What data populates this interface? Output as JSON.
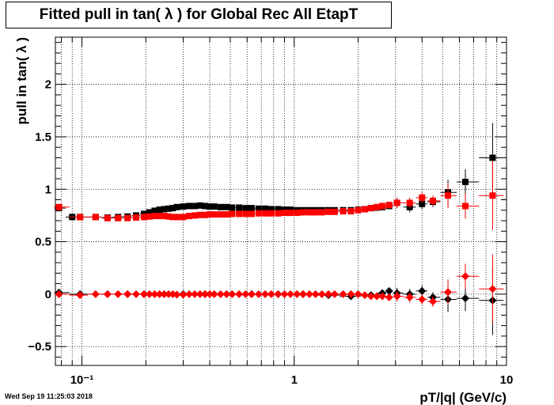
{
  "title": "Fitted pull in tan( λ ) for Global Rec All EtapT",
  "timestamp": "Wed Sep 19 11:25:03 2018",
  "colors": {
    "series_black": "#000000",
    "series_red": "#ff0000",
    "grid": "#000000"
  },
  "chart_data": {
    "type": "scatter",
    "title": "Fitted pull in tan( λ ) for Global Rec All EtapT",
    "xlabel": "pT/|q| (GeV/c)",
    "ylabel": "pull in tan( λ )",
    "xscale": "log",
    "xlim": [
      0.075,
      10
    ],
    "ylim": [
      -0.68,
      2.45
    ],
    "grid": true,
    "xticks": [
      {
        "value": 0.1,
        "label": "10⁻¹"
      },
      {
        "value": 1,
        "label": "1"
      },
      {
        "value": 10,
        "label": "10"
      }
    ],
    "yticks": [
      -0.5,
      0,
      0.5,
      1,
      1.5,
      2
    ],
    "ytick_labels": [
      "−0.5",
      "0",
      "0.5",
      "1",
      "1.5",
      "2"
    ],
    "series": [
      {
        "marker": "square",
        "color": "#000000",
        "points": [
          [
            0.078,
            0.82
          ],
          [
            0.09,
            0.735
          ],
          [
            0.098,
            0.735
          ],
          [
            0.116,
            0.735
          ],
          [
            0.132,
            0.73
          ],
          [
            0.148,
            0.735
          ],
          [
            0.164,
            0.74
          ],
          [
            0.18,
            0.75
          ],
          [
            0.196,
            0.765
          ],
          [
            0.208,
            0.78
          ],
          [
            0.22,
            0.795
          ],
          [
            0.232,
            0.805
          ],
          [
            0.244,
            0.81
          ],
          [
            0.256,
            0.815
          ],
          [
            0.268,
            0.82
          ],
          [
            0.28,
            0.83
          ],
          [
            0.3,
            0.835
          ],
          [
            0.32,
            0.84
          ],
          [
            0.34,
            0.84
          ],
          [
            0.36,
            0.845
          ],
          [
            0.38,
            0.84
          ],
          [
            0.4,
            0.835
          ],
          [
            0.42,
            0.835
          ],
          [
            0.45,
            0.83
          ],
          [
            0.48,
            0.83
          ],
          [
            0.51,
            0.825
          ],
          [
            0.55,
            0.825
          ],
          [
            0.59,
            0.82
          ],
          [
            0.63,
            0.82
          ],
          [
            0.68,
            0.815
          ],
          [
            0.73,
            0.815
          ],
          [
            0.78,
            0.81
          ],
          [
            0.84,
            0.81
          ],
          [
            0.9,
            0.805
          ],
          [
            0.96,
            0.805
          ],
          [
            1.03,
            0.8
          ],
          [
            1.1,
            0.8
          ],
          [
            1.18,
            0.8
          ],
          [
            1.26,
            0.8
          ],
          [
            1.35,
            0.8
          ],
          [
            1.45,
            0.8
          ],
          [
            1.55,
            0.8
          ],
          [
            1.7,
            0.8
          ],
          [
            1.85,
            0.8
          ],
          [
            2.0,
            0.805
          ],
          [
            2.15,
            0.81
          ],
          [
            2.3,
            0.82
          ],
          [
            2.45,
            0.825
          ],
          [
            2.6,
            0.83
          ],
          [
            2.8,
            0.84
          ],
          [
            3.05,
            0.87
          ],
          [
            3.5,
            0.83
          ],
          [
            4.0,
            0.86
          ],
          [
            4.5,
            0.88
          ],
          [
            5.3,
            0.97
          ],
          [
            6.4,
            1.07
          ],
          [
            8.6,
            1.3
          ]
        ]
      },
      {
        "marker": "square",
        "color": "#ff0000",
        "points": [
          [
            0.078,
            0.83
          ],
          [
            0.098,
            0.735
          ],
          [
            0.116,
            0.735
          ],
          [
            0.132,
            0.725
          ],
          [
            0.148,
            0.725
          ],
          [
            0.164,
            0.725
          ],
          [
            0.18,
            0.73
          ],
          [
            0.196,
            0.735
          ],
          [
            0.208,
            0.74
          ],
          [
            0.22,
            0.745
          ],
          [
            0.232,
            0.745
          ],
          [
            0.244,
            0.745
          ],
          [
            0.256,
            0.74
          ],
          [
            0.268,
            0.735
          ],
          [
            0.28,
            0.735
          ],
          [
            0.3,
            0.735
          ],
          [
            0.32,
            0.745
          ],
          [
            0.34,
            0.75
          ],
          [
            0.36,
            0.755
          ],
          [
            0.38,
            0.755
          ],
          [
            0.4,
            0.76
          ],
          [
            0.42,
            0.76
          ],
          [
            0.45,
            0.76
          ],
          [
            0.48,
            0.76
          ],
          [
            0.51,
            0.765
          ],
          [
            0.55,
            0.765
          ],
          [
            0.59,
            0.765
          ],
          [
            0.63,
            0.765
          ],
          [
            0.68,
            0.77
          ],
          [
            0.73,
            0.77
          ],
          [
            0.78,
            0.77
          ],
          [
            0.84,
            0.77
          ],
          [
            0.9,
            0.775
          ],
          [
            0.96,
            0.775
          ],
          [
            1.03,
            0.775
          ],
          [
            1.1,
            0.78
          ],
          [
            1.18,
            0.78
          ],
          [
            1.26,
            0.78
          ],
          [
            1.35,
            0.78
          ],
          [
            1.45,
            0.785
          ],
          [
            1.55,
            0.785
          ],
          [
            1.7,
            0.79
          ],
          [
            1.85,
            0.79
          ],
          [
            2.0,
            0.8
          ],
          [
            2.15,
            0.81
          ],
          [
            2.3,
            0.82
          ],
          [
            2.45,
            0.83
          ],
          [
            2.6,
            0.84
          ],
          [
            2.8,
            0.85
          ],
          [
            3.05,
            0.87
          ],
          [
            3.5,
            0.87
          ],
          [
            4.0,
            0.92
          ],
          [
            4.5,
            0.89
          ],
          [
            5.3,
            0.94
          ],
          [
            6.4,
            0.84
          ],
          [
            8.6,
            0.94
          ]
        ]
      },
      {
        "marker": "diamond",
        "color": "#000000",
        "points": [
          [
            0.078,
            0.015
          ],
          [
            0.098,
            0.0
          ],
          [
            0.132,
            0.0
          ],
          [
            0.164,
            0.0
          ],
          [
            0.196,
            0.0
          ],
          [
            0.244,
            0.0
          ],
          [
            0.3,
            0.0
          ],
          [
            0.38,
            0.0
          ],
          [
            0.48,
            0.0
          ],
          [
            0.63,
            0.0
          ],
          [
            0.84,
            0.0
          ],
          [
            1.1,
            0.0
          ],
          [
            1.45,
            -0.01
          ],
          [
            1.85,
            -0.02
          ],
          [
            2.3,
            -0.01
          ],
          [
            2.6,
            0.01
          ],
          [
            2.8,
            0.03
          ],
          [
            3.05,
            0.01
          ],
          [
            3.5,
            0.0
          ],
          [
            4.0,
            0.03
          ],
          [
            4.5,
            -0.03
          ],
          [
            5.3,
            -0.05
          ],
          [
            6.4,
            -0.04
          ],
          [
            8.6,
            -0.06
          ]
        ]
      },
      {
        "marker": "diamond",
        "color": "#ff0000",
        "points": [
          [
            0.078,
            0.0
          ],
          [
            0.098,
            -0.01
          ],
          [
            0.116,
            0.0
          ],
          [
            0.132,
            0.0
          ],
          [
            0.148,
            0.0
          ],
          [
            0.164,
            0.0
          ],
          [
            0.18,
            0.0
          ],
          [
            0.196,
            0.0
          ],
          [
            0.208,
            0.0
          ],
          [
            0.22,
            0.0
          ],
          [
            0.232,
            0.0
          ],
          [
            0.244,
            0.0
          ],
          [
            0.256,
            0.0
          ],
          [
            0.268,
            0.0
          ],
          [
            0.28,
            -0.005
          ],
          [
            0.3,
            -0.005
          ],
          [
            0.32,
            0.0
          ],
          [
            0.34,
            0.0
          ],
          [
            0.36,
            0.0
          ],
          [
            0.38,
            0.0
          ],
          [
            0.4,
            0.0
          ],
          [
            0.42,
            0.0
          ],
          [
            0.45,
            0.0
          ],
          [
            0.48,
            0.0
          ],
          [
            0.51,
            0.0
          ],
          [
            0.55,
            0.0
          ],
          [
            0.59,
            0.0
          ],
          [
            0.63,
            0.0
          ],
          [
            0.68,
            0.0
          ],
          [
            0.73,
            0.0
          ],
          [
            0.78,
            0.0
          ],
          [
            0.84,
            0.0
          ],
          [
            0.9,
            0.0
          ],
          [
            0.96,
            0.0
          ],
          [
            1.03,
            0.0
          ],
          [
            1.1,
            0.0
          ],
          [
            1.18,
            0.0
          ],
          [
            1.26,
            0.0
          ],
          [
            1.35,
            0.0
          ],
          [
            1.45,
            0.0
          ],
          [
            1.55,
            0.0
          ],
          [
            1.7,
            0.0
          ],
          [
            1.85,
            0.0
          ],
          [
            2.0,
            0.0
          ],
          [
            2.15,
            -0.01
          ],
          [
            2.3,
            -0.02
          ],
          [
            2.45,
            -0.02
          ],
          [
            2.6,
            -0.02
          ],
          [
            2.8,
            -0.03
          ],
          [
            3.05,
            -0.02
          ],
          [
            3.5,
            -0.03
          ],
          [
            4.0,
            -0.05
          ],
          [
            4.5,
            -0.07
          ],
          [
            5.3,
            0.02
          ],
          [
            6.4,
            0.17
          ],
          [
            8.6,
            0.05
          ]
        ]
      }
    ]
  }
}
